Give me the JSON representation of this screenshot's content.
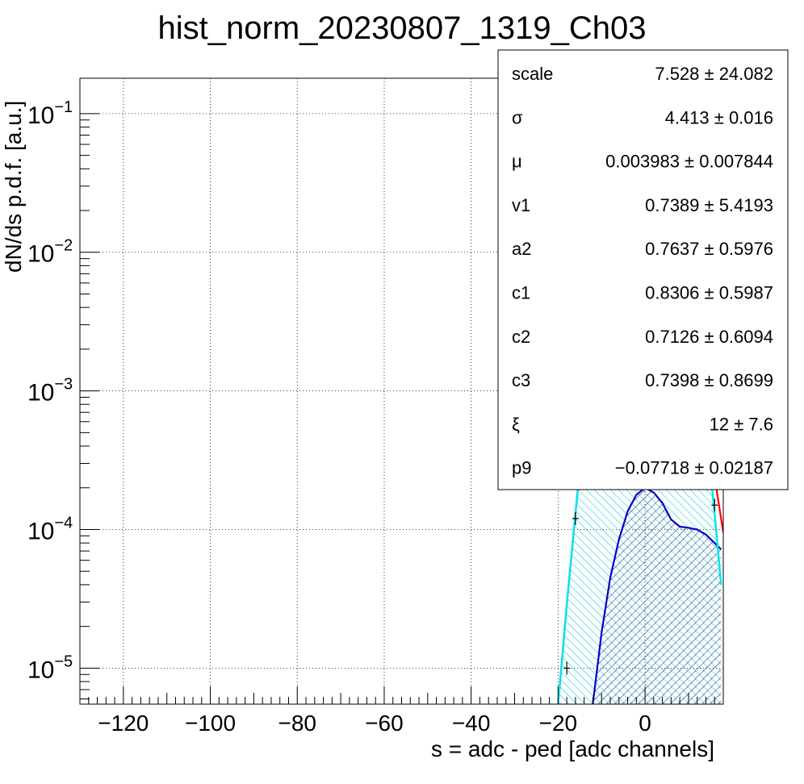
{
  "chart_data": {
    "type": "line",
    "title": "hist_norm_20230807_1319_Ch03",
    "xlabel": "s = adc - ped [adc channels]",
    "ylabel": "dN/ds p.d.f. [a.u.]",
    "xlim": [
      -130,
      18
    ],
    "ylim": [
      5.5e-06,
      0.18
    ],
    "yscale": "log",
    "grid": true,
    "x_ticks": [
      -120,
      -100,
      -80,
      -60,
      -40,
      -20,
      0
    ],
    "x_tick_labels": [
      "−120",
      "−100",
      "−80",
      "−60",
      "−40",
      "−20",
      "0"
    ],
    "y_ticks": [
      1e-05,
      0.0001,
      0.001,
      0.01,
      0.1
    ],
    "y_tick_mantissa": [
      "10",
      "10",
      "10",
      "10",
      "10"
    ],
    "y_tick_exponents": [
      "−5",
      "−4",
      "−3",
      "−2",
      "−1"
    ],
    "series": [
      {
        "role": "histogram",
        "color": "#000000",
        "x": [
          -18,
          -16,
          -14,
          -12,
          -10,
          -8,
          -6,
          -4,
          -2,
          0,
          2,
          4,
          6,
          8,
          10,
          12,
          14,
          16
        ],
        "y": [
          1e-05,
          0.00012,
          0.00058,
          0.0021,
          0.0063,
          0.0157,
          0.0327,
          0.0566,
          0.0815,
          0.0885,
          0.0815,
          0.0566,
          0.0327,
          0.0157,
          0.0063,
          0.0021,
          0.00058,
          0.00015
        ]
      },
      {
        "role": "total-fit",
        "color": "#ff0000",
        "x": [
          -20,
          -18,
          -16,
          -14,
          -12,
          -10,
          -8,
          -6,
          -4,
          -2,
          0,
          2,
          4,
          6,
          8,
          10,
          12,
          14,
          16,
          18
        ],
        "y": [
          5.5e-06,
          2.85e-05,
          0.000131,
          0.000569,
          0.00211,
          0.00628,
          0.0157,
          0.0327,
          0.0566,
          0.0815,
          0.0885,
          0.0815,
          0.0566,
          0.0327,
          0.0157,
          0.00628,
          0.00222,
          0.00067,
          0.00024,
          9.5e-05
        ]
      },
      {
        "role": "pedestal-component",
        "color": "#00e5ee",
        "x": [
          -20,
          -18,
          -16,
          -14,
          -12,
          -10,
          -8,
          -6,
          -4,
          -2,
          0,
          2,
          4,
          6,
          8,
          10,
          12,
          14,
          16,
          17.5
        ],
        "y": [
          5.5e-06,
          2.85e-05,
          0.000131,
          0.000569,
          0.00211,
          0.00628,
          0.0157,
          0.0327,
          0.0566,
          0.0815,
          0.0885,
          0.0815,
          0.0566,
          0.0327,
          0.0157,
          0.00628,
          0.00211,
          0.000569,
          0.000131,
          4e-05
        ]
      },
      {
        "role": "signal-component",
        "color": "#0000cc",
        "x": [
          -12,
          -10,
          -8,
          -6,
          -4,
          -2,
          0,
          2,
          4,
          6,
          8,
          10,
          12,
          14,
          16,
          17.5
        ],
        "y": [
          5.5e-06,
          1.8e-05,
          4.5e-05,
          8.5e-05,
          0.000135,
          0.000178,
          0.0002,
          0.000185,
          0.000155,
          0.000118,
          0.000105,
          0.000103,
          0.0001,
          9.2e-05,
          8e-05,
          7.2e-05
        ]
      }
    ],
    "stats_box": {
      "rows": [
        {
          "name": "scale",
          "value": "7.528 ± 24.082"
        },
        {
          "name": "σ",
          "value": "4.413 ± 0.016"
        },
        {
          "name": "μ",
          "value": "0.003983 ± 0.007844"
        },
        {
          "name": "v1",
          "value": "0.7389 ± 5.4193"
        },
        {
          "name": "a2",
          "value": "0.7637 ± 0.5976"
        },
        {
          "name": "c1",
          "value": "0.8306 ± 0.5987"
        },
        {
          "name": "c2",
          "value": "0.7126 ± 0.6094"
        },
        {
          "name": "c3",
          "value": "0.7398 ± 0.8699"
        },
        {
          "name": "ξ",
          "value": "12 ± 7.6"
        },
        {
          "name": "p9",
          "value": "−0.07718 ± 0.02187"
        }
      ]
    }
  }
}
